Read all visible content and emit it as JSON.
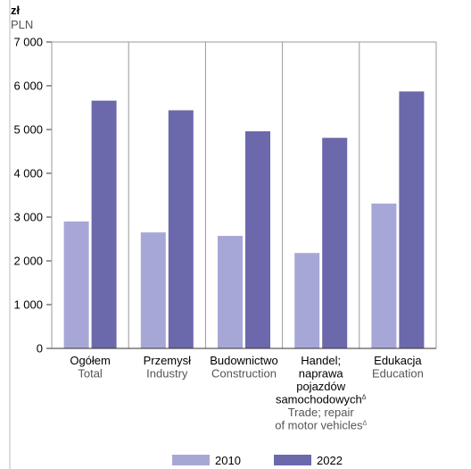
{
  "chart_data": {
    "type": "bar",
    "unit_pl": "zł",
    "unit_en": "PLN",
    "ylim": [
      0,
      7000
    ],
    "yticks": [
      "0",
      "1 000",
      "2 000",
      "3 000",
      "4 000",
      "5 000",
      "6 000",
      "7 000"
    ],
    "ytick_values": [
      0,
      1000,
      2000,
      3000,
      4000,
      5000,
      6000,
      7000
    ],
    "grid": "vertical separators between categories",
    "legend_position": "bottom",
    "categories": [
      {
        "pl": [
          "Ogółem"
        ],
        "en": [
          "Total"
        ]
      },
      {
        "pl": [
          "Przemysł"
        ],
        "en": [
          "Industry"
        ]
      },
      {
        "pl": [
          "Budownictwo"
        ],
        "en": [
          "Construction"
        ]
      },
      {
        "pl": [
          "Handel;",
          "naprawa",
          "pojazdów",
          "samochodowych"
        ],
        "en": [
          "Trade; repair",
          "of motor vehicles"
        ],
        "note_mark": "Δ"
      },
      {
        "pl": [
          "Edukacja"
        ],
        "en": [
          "Education"
        ]
      }
    ],
    "series": [
      {
        "name": "2010",
        "color": "#a7a7d7",
        "values": [
          2900,
          2650,
          2570,
          2180,
          3310
        ]
      },
      {
        "name": "2022",
        "color": "#6b68ac",
        "values": [
          5660,
          5440,
          4960,
          4810,
          5870
        ]
      }
    ]
  }
}
